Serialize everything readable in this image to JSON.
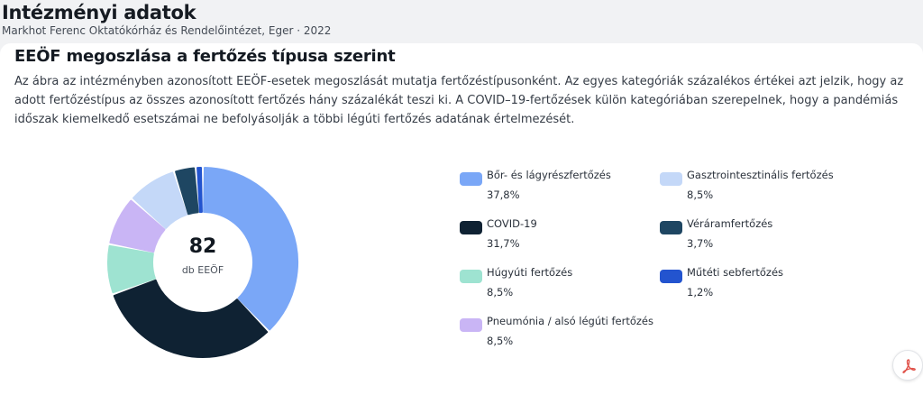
{
  "header": {
    "title": "Intézményi adatok",
    "subtitle": "Markhot Ferenc Oktatókórház és Rendelőintézet, Eger · 2022"
  },
  "card": {
    "title": "EEÖF megoszlása a fertőzés típusa szerint",
    "description": "Az ábra az intézményben azonosított EEÖF-esetek megoszlását mutatja fertőzéstípusonként. Az egyes kategóriák százalékos értékei azt jelzik, hogy az adott fertőzéstípus az összes azonosított fertőzés hány százalékát teszi ki. A COVID–19-fertőzések külön kategóriában szerepelnek, hogy a pandémiás időszak kiemelkedő esetszámai ne befolyásolják a többi légúti fertőzés adatának értelmezését."
  },
  "chart_data": {
    "type": "pie",
    "variant": "donut",
    "center": {
      "total": "82",
      "unit": "db EEÖF"
    },
    "legend_position": "right",
    "slices": [
      {
        "name": "Bőr- és lágyrészfertőzés",
        "value": 37.8,
        "label": "37,8%",
        "color": "#7aa7f7"
      },
      {
        "name": "COVID-19",
        "value": 31.7,
        "label": "31,7%",
        "color": "#0f2233"
      },
      {
        "name": "Húgyúti fertőzés",
        "value": 8.5,
        "label": "8,5%",
        "color": "#9ee3d1"
      },
      {
        "name": "Pneumónia / alsó légúti fertőzés",
        "value": 8.5,
        "label": "8,5%",
        "color": "#c9b5f5"
      },
      {
        "name": "Gasztrointesztinális fertőzés",
        "value": 8.5,
        "label": "8,5%",
        "color": "#c4d8f8"
      },
      {
        "name": "Véráramfertőzés",
        "value": 3.7,
        "label": "3,7%",
        "color": "#1e4662"
      },
      {
        "name": "Műtéti sebfertőzés",
        "value": 1.2,
        "label": "1,2%",
        "color": "#2354cf"
      }
    ],
    "legend_order": [
      0,
      4,
      1,
      5,
      2,
      6,
      3
    ]
  },
  "pdf_icon": "pdf-icon",
  "colors": {
    "pdf_accent": "#e0524a"
  }
}
